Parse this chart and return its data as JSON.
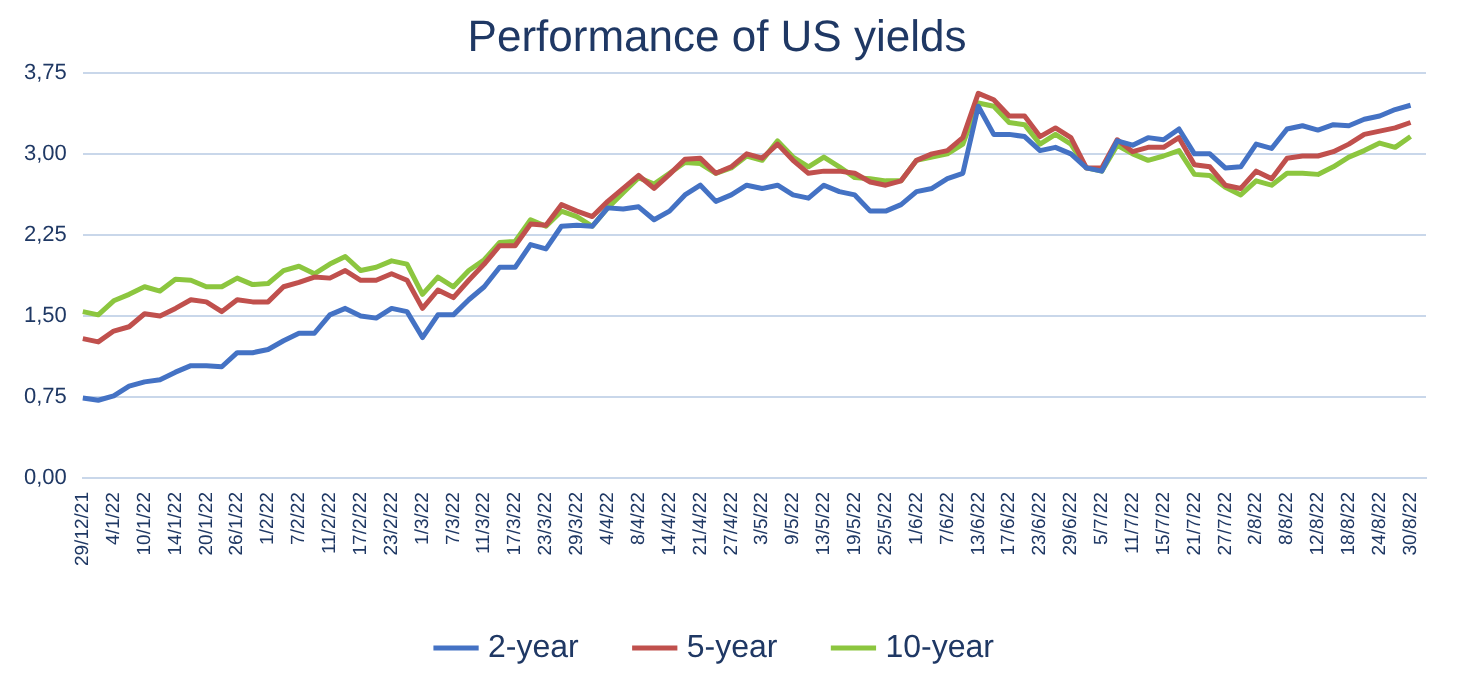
{
  "chart_data": {
    "type": "line",
    "title": "Performance of US yields",
    "categories": [
      "29/12/21",
      null,
      "4/1/22",
      null,
      "10/1/22",
      null,
      "14/1/22",
      null,
      "20/1/22",
      null,
      "26/1/22",
      null,
      "1/2/22",
      null,
      "7/2/22",
      null,
      "11/2/22",
      null,
      "17/2/22",
      null,
      "23/2/22",
      null,
      "1/3/22",
      null,
      "7/3/22",
      null,
      "11/3/22",
      null,
      "17/3/22",
      null,
      "23/3/22",
      null,
      "29/3/22",
      null,
      "4/4/22",
      null,
      "8/4/22",
      null,
      "14/4/22",
      null,
      "21/4/22",
      null,
      "27/4/22",
      null,
      "3/5/22",
      null,
      "9/5/22",
      null,
      "13/5/22",
      null,
      "19/5/22",
      null,
      "25/5/22",
      null,
      "1/6/22",
      null,
      "7/6/22",
      null,
      "13/6/22",
      null,
      "17/6/22",
      null,
      "23/6/22",
      null,
      "29/6/22",
      null,
      "5/7/22",
      null,
      "11/7/22",
      null,
      "15/7/22",
      null,
      "21/7/22",
      null,
      "27/7/22",
      null,
      "2/8/22",
      null,
      "8/8/22",
      null,
      "12/8/22",
      null,
      "18/8/22",
      null,
      "24/8/22",
      null,
      "30/8/22",
      null
    ],
    "series": [
      {
        "name": "2-year",
        "color": "#4472c4",
        "values": [
          0.74,
          0.72,
          0.76,
          0.85,
          0.89,
          0.91,
          0.98,
          1.04,
          1.04,
          1.03,
          1.16,
          1.16,
          1.19,
          1.27,
          1.34,
          1.34,
          1.51,
          1.57,
          1.5,
          1.48,
          1.57,
          1.54,
          1.3,
          1.51,
          1.51,
          1.65,
          1.77,
          1.95,
          1.95,
          2.16,
          2.12,
          2.33,
          2.34,
          2.33,
          2.5,
          2.49,
          2.51,
          2.39,
          2.47,
          2.62,
          2.71,
          2.56,
          2.62,
          2.71,
          2.68,
          2.71,
          2.62,
          2.59,
          2.71,
          2.65,
          2.62,
          2.47,
          2.47,
          2.53,
          2.65,
          2.68,
          2.77,
          2.82,
          3.44,
          3.18,
          3.18,
          3.16,
          3.03,
          3.06,
          3.0,
          2.87,
          2.84,
          3.12,
          3.08,
          3.15,
          3.13,
          3.23,
          3.0,
          3.0,
          2.87,
          2.88,
          3.09,
          3.05,
          3.23,
          3.26,
          3.22,
          3.27,
          3.26,
          3.32,
          3.35,
          3.41,
          3.45,
          null
        ]
      },
      {
        "name": "5-year",
        "color": "#c0504d",
        "values": [
          1.29,
          1.26,
          1.36,
          1.4,
          1.52,
          1.5,
          1.57,
          1.65,
          1.63,
          1.54,
          1.65,
          1.63,
          1.63,
          1.77,
          1.81,
          1.86,
          1.85,
          1.92,
          1.83,
          1.83,
          1.89,
          1.83,
          1.57,
          1.74,
          1.67,
          1.83,
          1.98,
          2.15,
          2.15,
          2.35,
          2.34,
          2.53,
          2.47,
          2.42,
          2.56,
          2.68,
          2.8,
          2.68,
          2.81,
          2.95,
          2.96,
          2.82,
          2.88,
          3.0,
          2.96,
          3.09,
          2.94,
          2.82,
          2.84,
          2.84,
          2.82,
          2.74,
          2.71,
          2.75,
          2.94,
          3.0,
          3.03,
          3.15,
          3.56,
          3.5,
          3.35,
          3.35,
          3.16,
          3.24,
          3.15,
          2.87,
          2.87,
          3.13,
          3.02,
          3.06,
          3.06,
          3.15,
          2.9,
          2.88,
          2.71,
          2.68,
          2.84,
          2.77,
          2.96,
          2.98,
          2.98,
          3.02,
          3.09,
          3.18,
          3.21,
          3.24,
          3.29,
          null
        ]
      },
      {
        "name": "10-year",
        "color": "#8cc63f",
        "values": [
          1.54,
          1.51,
          1.64,
          1.7,
          1.77,
          1.73,
          1.84,
          1.83,
          1.77,
          1.77,
          1.85,
          1.79,
          1.8,
          1.92,
          1.96,
          1.89,
          1.98,
          2.05,
          1.92,
          1.95,
          2.01,
          1.98,
          1.7,
          1.86,
          1.77,
          1.92,
          2.02,
          2.18,
          2.19,
          2.39,
          2.33,
          2.47,
          2.42,
          2.33,
          2.5,
          2.64,
          2.78,
          2.72,
          2.82,
          2.92,
          2.91,
          2.82,
          2.87,
          2.98,
          2.94,
          3.12,
          2.97,
          2.88,
          2.97,
          2.88,
          2.78,
          2.77,
          2.75,
          2.75,
          2.94,
          2.97,
          3.0,
          3.09,
          3.47,
          3.44,
          3.29,
          3.27,
          3.09,
          3.18,
          3.09,
          2.87,
          2.84,
          3.08,
          3.0,
          2.94,
          2.98,
          3.03,
          2.81,
          2.8,
          2.69,
          2.62,
          2.75,
          2.71,
          2.82,
          2.82,
          2.81,
          2.88,
          2.97,
          3.03,
          3.1,
          3.06,
          3.16,
          null
        ]
      }
    ],
    "ylim": [
      0,
      3.75
    ],
    "yticks": [
      {
        "value": 0,
        "label": "0,00"
      },
      {
        "value": 0.75,
        "label": "0,75"
      },
      {
        "value": 1.5,
        "label": "1,50"
      },
      {
        "value": 2.25,
        "label": "2,25"
      },
      {
        "value": 3,
        "label": "3,00"
      },
      {
        "value": 3.75,
        "label": "3,75"
      }
    ],
    "grid": "y",
    "legend": "bottom",
    "marker": "none",
    "line_style": "solid"
  }
}
